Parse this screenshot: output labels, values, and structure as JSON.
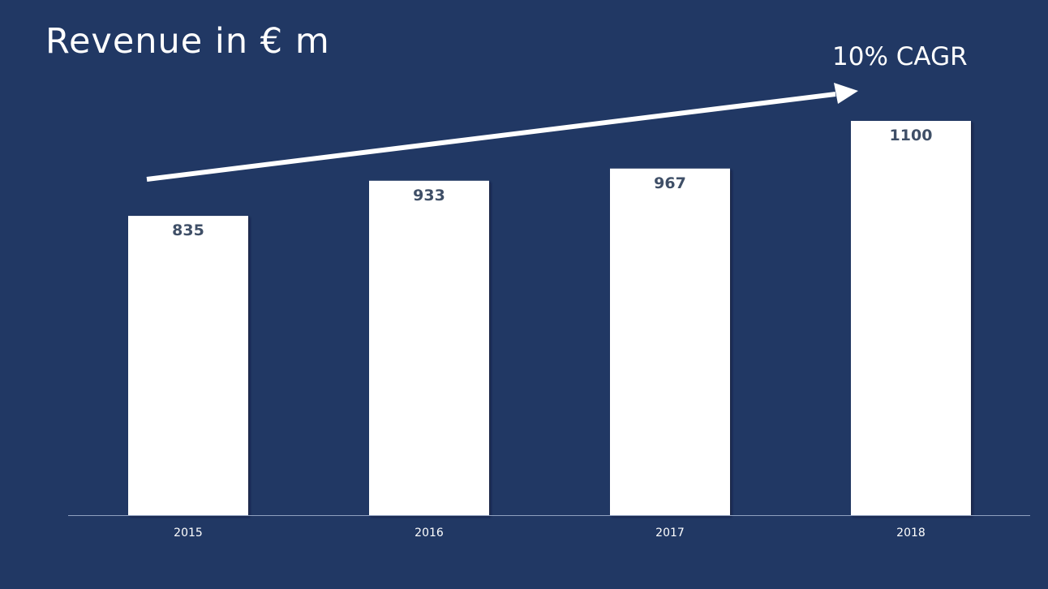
{
  "title": "Revenue in € m",
  "annotation": "10% CAGR",
  "colors": {
    "background": "#213864",
    "bar": "#ffffff",
    "data_label": "#3f4f67",
    "axis": "#8fa0bf"
  },
  "chart_data": {
    "type": "bar",
    "title": "Revenue in € m",
    "xlabel": "",
    "ylabel": "",
    "categories": [
      "2015",
      "2016",
      "2017",
      "2018"
    ],
    "values": [
      835,
      933,
      967,
      1100
    ],
    "data_labels": [
      "835",
      "933",
      "967",
      "1100"
    ],
    "ylim": [
      0,
      1100
    ],
    "grid": false,
    "legend": "none",
    "annotations": [
      {
        "text": "10% CAGR",
        "shape": "arrow",
        "direction": "up-right"
      }
    ]
  }
}
